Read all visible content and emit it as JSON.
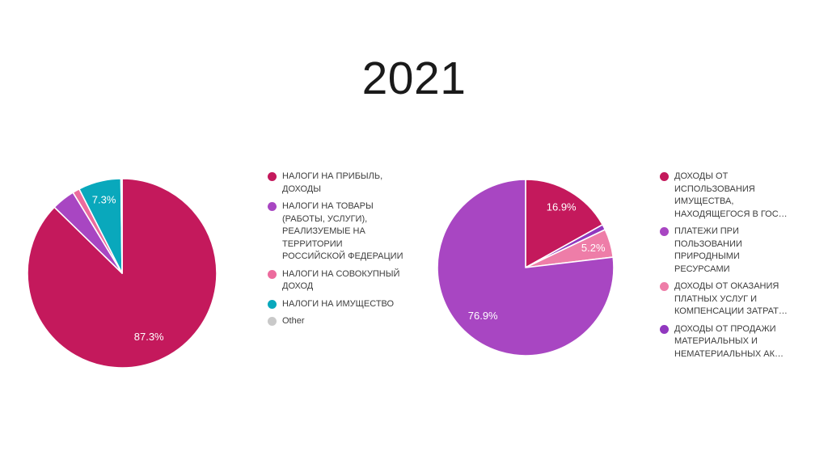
{
  "slide": {
    "title": "2021",
    "background_color": "#ffffff"
  },
  "chart_data": [
    {
      "type": "pie",
      "title": "",
      "legend_position": "right",
      "value_label_color": "#ffffff",
      "slices": [
        {
          "label": "НАЛОГИ НА ПРИБЫЛЬ, ДОХОДЫ",
          "value": 87.3,
          "pct_label": "87.3%",
          "color": "#C4195C"
        },
        {
          "label": "НАЛОГИ НА ТОВАРЫ (РАБОТЫ, УСЛУГИ), РЕАЛИЗУЕМЫЕ НА ТЕРРИТОРИИ РОССИЙСКОЙ ФЕДЕРАЦИИ",
          "value": 4.0,
          "pct_label": null,
          "color": "#A846C2"
        },
        {
          "label": "НАЛОГИ НА СОВОКУПНЫЙ ДОХОД",
          "value": 1.2,
          "pct_label": null,
          "color": "#EC6B9D"
        },
        {
          "label": "НАЛОГИ НА ИМУЩЕСТВО",
          "value": 7.3,
          "pct_label": "7.3%",
          "color": "#09A8BC"
        },
        {
          "label": "Other",
          "value": 0.2,
          "pct_label": null,
          "color": "#C9C9C9"
        }
      ],
      "draw_order": [
        0,
        1,
        2,
        3,
        4
      ]
    },
    {
      "type": "pie",
      "title": "",
      "legend_position": "right",
      "value_label_color": "#ffffff",
      "slices": [
        {
          "label": "ДОХОДЫ ОТ ИСПОЛЬЗОВАНИЯ ИМУЩЕСТВА, НАХОДЯЩЕГОСЯ В ГОС…",
          "value": 16.9,
          "pct_label": "16.9%",
          "color": "#C4195C"
        },
        {
          "label": "ПЛАТЕЖИ ПРИ ПОЛЬЗОВАНИИ ПРИРОДНЫМИ РЕСУРСАМИ",
          "value": 76.9,
          "pct_label": "76.9%",
          "color": "#A846C2"
        },
        {
          "label": "ДОХОДЫ ОТ ОКАЗАНИЯ ПЛАТНЫХ УСЛУГ И КОМПЕНСАЦИИ ЗАТРАТ…",
          "value": 5.2,
          "pct_label": "5.2%",
          "color": "#EE7DA8"
        },
        {
          "label": "ДОХОДЫ ОТ ПРОДАЖИ МАТЕРИАЛЬНЫХ И НЕМАТЕРИАЛЬНЫХ АК…",
          "value": 1.0,
          "pct_label": null,
          "color": "#9138BF"
        }
      ],
      "draw_order": [
        0,
        3,
        2,
        1
      ]
    }
  ]
}
